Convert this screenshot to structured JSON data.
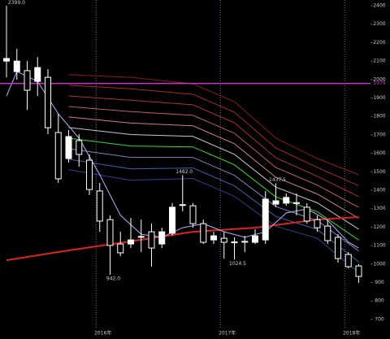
{
  "chart_data": {
    "type": "candlestick",
    "categories": [
      null,
      null,
      null,
      null,
      null,
      null,
      null,
      null,
      null,
      "2016年",
      null,
      null,
      null,
      null,
      null,
      null,
      null,
      null,
      null,
      null,
      null,
      "2017年",
      null,
      null,
      null,
      null,
      null,
      null,
      null,
      null,
      null,
      null,
      null,
      "2018年",
      null
    ],
    "open": [
      2100,
      2043,
      2048,
      1990,
      2012,
      1713,
      1572,
      1669,
      1563,
      1396,
      1241,
      1109,
      1109,
      1145,
      1175,
      1109,
      1167,
      1318,
      1316,
      1219,
      1131,
      1140,
      1120,
      1120,
      1118,
      1131,
      1325,
      1330,
      1330,
      1308,
      1241,
      1206,
      1145,
      1052,
      990
    ],
    "high": [
      2399,
      2167,
      2100,
      2122,
      2056,
      1814,
      1726,
      1704,
      1594,
      1440,
      1263,
      1175,
      1250,
      1241,
      1219,
      1197,
      1330,
      1482,
      1330,
      1241,
      1175,
      1175,
      1145,
      1153,
      1188,
      1396,
      1437.5,
      1383,
      1383,
      1330,
      1263,
      1241,
      1162,
      1065,
      1000
    ],
    "low": [
      2012,
      1999,
      1836,
      1911,
      1704,
      1440,
      1550,
      1528,
      1374,
      1175,
      942,
      1043,
      1087,
      1065,
      986,
      1087,
      1153,
      1286,
      1197,
      1109,
      1109,
      1030,
      1024.5,
      1065,
      1109,
      1109,
      1308,
      1316,
      1264,
      1219,
      1175,
      1109,
      1008,
      977,
      898
    ],
    "close": [
      2114,
      2100,
      1942,
      2065,
      1739,
      1462,
      1691,
      1594,
      1404,
      1233,
      1101,
      1061,
      1131,
      1150,
      1087,
      1175,
      1308,
      1322,
      1219,
      1118,
      1153,
      1118,
      1118,
      1123,
      1153,
      1352,
      1343,
      1361,
      1333,
      1233,
      1197,
      1127,
      1030,
      986,
      933
    ],
    "high_labels": [
      "2399.0",
      null,
      null,
      null,
      null,
      null,
      null,
      null,
      null,
      null,
      null,
      null,
      null,
      null,
      null,
      null,
      null,
      "1482.0",
      null,
      null,
      null,
      null,
      null,
      null,
      null,
      null,
      "1437.5",
      null,
      null,
      null,
      null,
      null,
      null,
      null,
      null
    ],
    "low_labels": [
      null,
      null,
      null,
      null,
      null,
      null,
      null,
      null,
      null,
      null,
      "942.0",
      null,
      null,
      null,
      null,
      null,
      null,
      null,
      null,
      null,
      null,
      null,
      "1024.5",
      null,
      null,
      null,
      null,
      null,
      null,
      null,
      null,
      null,
      null,
      null,
      null
    ],
    "up_color": "#ffffff",
    "down_color": "#000000",
    "ylim": [
      594,
      2431
    ],
    "yticks": [
      700,
      800,
      900,
      1000,
      1100,
      1200,
      1300,
      1400,
      1500,
      1600,
      1700,
      1800,
      1900,
      2000,
      2100,
      2200,
      2300,
      2400
    ],
    "hline": {
      "value": 1979,
      "label": "1979",
      "color": "#cc33cc"
    },
    "bands": {
      "x": [
        6,
        12,
        18,
        22,
        26,
        30,
        34
      ],
      "series": [
        {
          "color": "#8b1a1a",
          "values": [
            2026,
            2012,
            1977,
            1880,
            1682,
            1572,
            1484
          ]
        },
        {
          "color": "#a52a2a",
          "values": [
            1969,
            1950,
            1920,
            1823,
            1629,
            1524,
            1425
          ]
        },
        {
          "color": "#b03030",
          "values": [
            1911,
            1888,
            1863,
            1766,
            1576,
            1476,
            1366
          ]
        },
        {
          "color": "#c06060",
          "values": [
            1854,
            1826,
            1806,
            1709,
            1523,
            1428,
            1307
          ]
        },
        {
          "color": "#d08080",
          "values": [
            1797,
            1764,
            1749,
            1652,
            1470,
            1380,
            1248
          ]
        },
        {
          "color": "#c8c8c8",
          "values": [
            1740,
            1702,
            1692,
            1595,
            1417,
            1332,
            1189
          ]
        },
        {
          "color": "#33dd33",
          "values": [
            1682,
            1640,
            1635,
            1538,
            1364,
            1284,
            1130
          ]
        },
        {
          "color": "#8080c0",
          "values": [
            1625,
            1578,
            1578,
            1481,
            1311,
            1236,
            1071
          ]
        },
        {
          "color": "#4060b0",
          "values": [
            1568,
            1516,
            1521,
            1424,
            1258,
            1188,
            1012
          ]
        },
        {
          "color": "#304090",
          "values": [
            1511,
            1454,
            1464,
            1367,
            1205,
            1140,
            953
          ]
        }
      ]
    },
    "averages": [
      {
        "color": "#dd2222",
        "width": 2,
        "x": [
          0,
          6,
          12,
          18,
          24,
          30,
          34
        ],
        "values": [
          1021,
          1074,
          1123,
          1175,
          1197,
          1241,
          1255
        ]
      },
      {
        "color": "#b0b0ff",
        "width": 1,
        "x": [
          0,
          1,
          3,
          5,
          7,
          9,
          11,
          13,
          15,
          17,
          19,
          21,
          23,
          25,
          27,
          29,
          31,
          33,
          34
        ],
        "values": [
          1911,
          2043,
          1990,
          1814,
          1682,
          1484,
          1264,
          1162,
          1145,
          1197,
          1219,
          1175,
          1145,
          1175,
          1277,
          1299,
          1237,
          1119,
          1087
        ]
      }
    ]
  }
}
